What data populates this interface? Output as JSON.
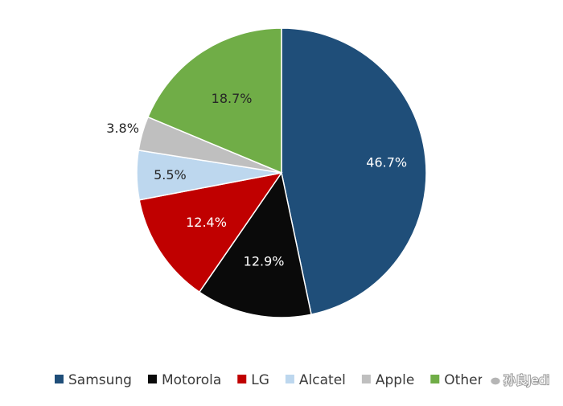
{
  "chart_data": {
    "type": "pie",
    "title": "",
    "start_angle_deg": 0,
    "direction": "clockwise",
    "slices": [
      {
        "name": "Samsung",
        "value": 46.7,
        "label": "46.7%",
        "color": "#1f4e79",
        "label_color": "#ffffff"
      },
      {
        "name": "Motorola",
        "value": 12.9,
        "label": "12.9%",
        "color": "#0a0a0a",
        "label_color": "#ffffff"
      },
      {
        "name": "LG",
        "value": 12.4,
        "label": "12.4%",
        "color": "#c00000",
        "label_color": "#ffffff"
      },
      {
        "name": "Alcatel",
        "value": 5.5,
        "label": "5.5%",
        "color": "#bdd7ee",
        "label_color": "#262626"
      },
      {
        "name": "Apple",
        "value": 3.8,
        "label": "3.8%",
        "color": "#bfbfbf",
        "label_color": "#262626"
      },
      {
        "name": "Other",
        "value": 18.7,
        "label": "18.7%",
        "color": "#70ad47",
        "label_color": "#262626"
      }
    ],
    "legend_position": "bottom"
  },
  "watermark": {
    "text": "孙良Jedi",
    "icon": "wechat-icon"
  }
}
